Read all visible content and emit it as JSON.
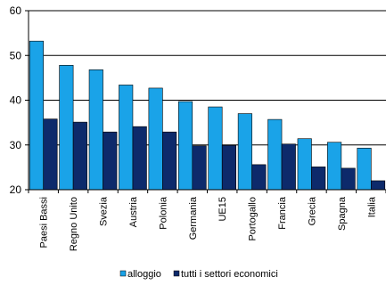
{
  "chart_data": {
    "type": "bar",
    "categories": [
      "Paesi Bassi",
      "Regno Unito",
      "Svezia",
      "Austria",
      "Polonia",
      "Germania",
      "UE15",
      "Portogallo",
      "Francia",
      "Grecia",
      "Spagna",
      "Italia"
    ],
    "series": [
      {
        "name": "alloggio",
        "color": "#1AA3E8",
        "values": [
          53.2,
          47.8,
          46.8,
          43.4,
          42.7,
          39.7,
          38.5,
          37.0,
          35.7,
          31.4,
          30.6,
          29.3
        ]
      },
      {
        "name": "tutti i settori economici",
        "color": "#0D2A6B",
        "values": [
          35.8,
          35.1,
          32.9,
          34.1,
          32.9,
          29.8,
          29.9,
          25.6,
          30.2,
          25.1,
          24.8,
          22.0
        ]
      }
    ],
    "ylim": [
      20,
      60
    ],
    "yticks": [
      20,
      30,
      40,
      50,
      60
    ],
    "grid": true,
    "legend_position": "bottom"
  }
}
